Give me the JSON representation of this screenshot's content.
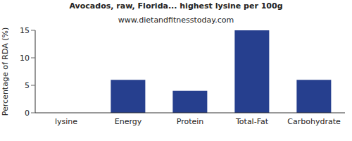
{
  "chart_data": {
    "type": "bar",
    "title": "Avocados, raw, Florida... highest lysine per 100g",
    "subtitle": "www.dietandfitnesstoday.com",
    "y_label": "Percentage of RDA (%)",
    "categories": [
      "lysine",
      "Energy",
      "Protein",
      "Total-Fat",
      "Carbohydrate"
    ],
    "values": [
      0,
      6,
      4,
      15,
      6
    ],
    "color": "#263f8e",
    "ylim": [
      0,
      15
    ],
    "yticks": [
      0,
      5,
      10,
      15
    ],
    "grid": false
  }
}
